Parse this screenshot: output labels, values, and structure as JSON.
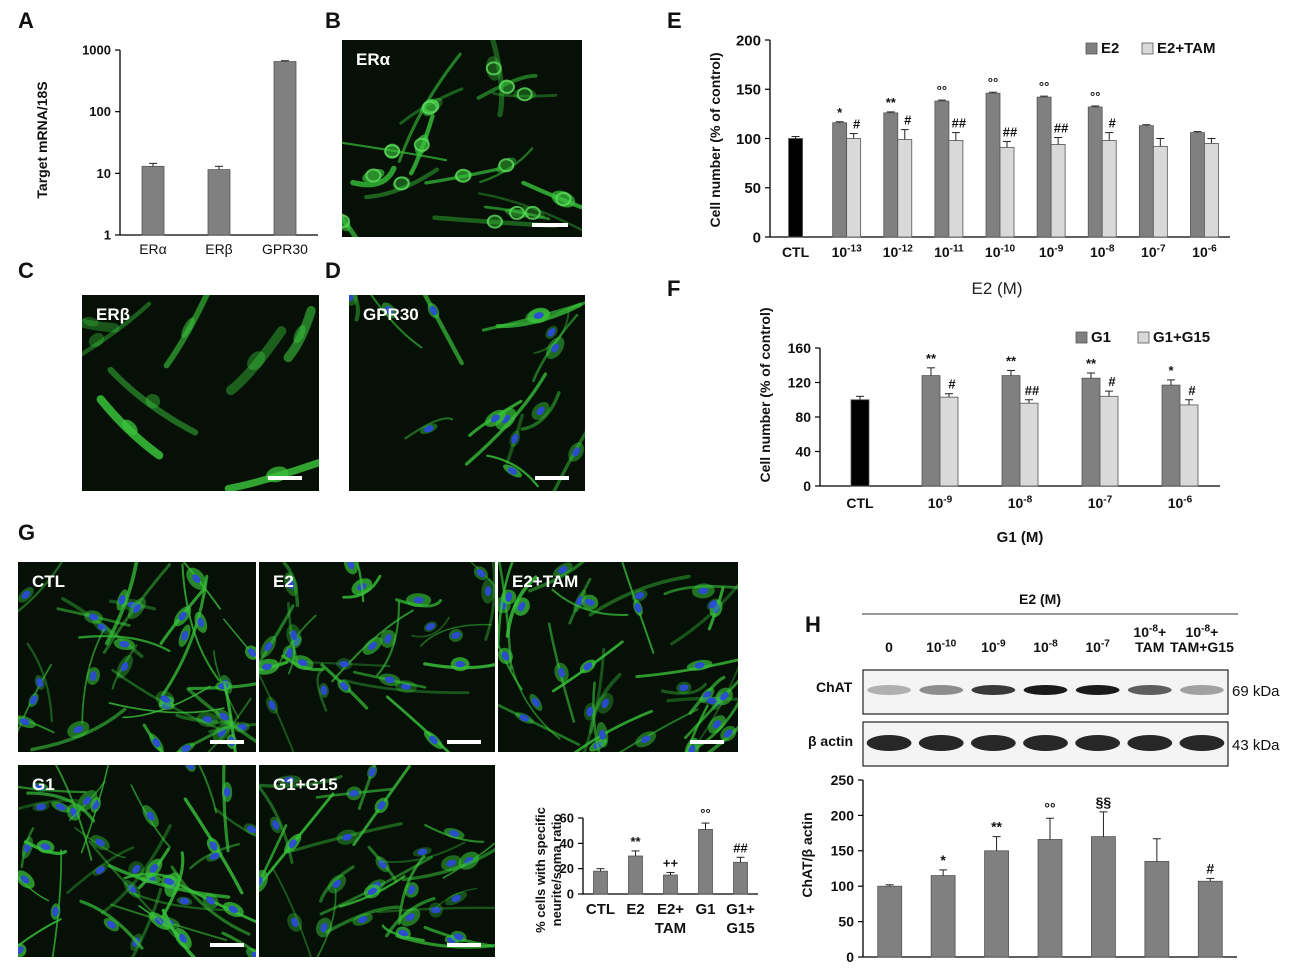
{
  "panels": {
    "A": {
      "letter": "A",
      "ylabel": "Target mRNA/18S"
    },
    "B": {
      "letter": "B",
      "label": "ERα"
    },
    "C": {
      "letter": "C",
      "label": "ERβ"
    },
    "D": {
      "letter": "D",
      "label": "GPR30"
    },
    "E": {
      "letter": "E",
      "xlabel": "E2 (M)",
      "ylabel": "Cell number (% of control)"
    },
    "F": {
      "letter": "F",
      "xlabel": "G1 (M)",
      "ylabel": "Cell number (% of control)"
    },
    "G": {
      "letter": "G",
      "images": [
        "CTL",
        "E2",
        "E2+TAM",
        "G1",
        "G1+G15"
      ],
      "ylabel_line1": "% cells with specific",
      "ylabel_line2": "neurite/soma ratio"
    },
    "H": {
      "letter": "H",
      "header": "E2 (M)",
      "lanes": [
        [
          "0"
        ],
        [
          "10-10"
        ],
        [
          "10-9"
        ],
        [
          "10-8"
        ],
        [
          "10-7"
        ],
        [
          "10-8+",
          "TAM"
        ],
        [
          "10-8+",
          "TAM+G15"
        ]
      ],
      "blot1_name": "ChAT",
      "blot1_kda": "69 kDa",
      "blot2_name": "β actin",
      "blot2_kda": "43 kDa",
      "ylabel": "ChAT/β actin"
    }
  },
  "colors": {
    "dark_bar": "#808080",
    "light_bar": "#d9d9d9",
    "black_bar": "#000000",
    "cell_green": "#38c23a",
    "nuclei_blue": "#2b4bd6"
  },
  "chart_data": [
    {
      "panel": "A",
      "type": "bar",
      "yscale": "log",
      "ylim": [
        1,
        1000
      ],
      "yticks": [
        1,
        10,
        100,
        1000
      ],
      "categories": [
        "ERα",
        "ERβ",
        "GPR30"
      ],
      "values": [
        13,
        11.5,
        650
      ],
      "errors": [
        1.5,
        1.5,
        20
      ],
      "ylabel": "Target mRNA/18S"
    },
    {
      "panel": "E",
      "type": "bar",
      "ylim": [
        0,
        200
      ],
      "yticks": [
        0,
        50,
        100,
        150,
        200
      ],
      "categories": [
        "CTL",
        "10-13",
        "10-12",
        "10-11",
        "10-10",
        "10-9",
        "10-8",
        "10-7",
        "10-6"
      ],
      "control": {
        "value": 100,
        "error": 2
      },
      "series": [
        {
          "name": "E2",
          "values": [
            null,
            116,
            126,
            138,
            146,
            142,
            132,
            113,
            106
          ],
          "errors": [
            null,
            1,
            1,
            1,
            1,
            1,
            1,
            1,
            1
          ],
          "marks": [
            null,
            "*",
            "**",
            "°°",
            "°°",
            "°°",
            "°°",
            "",
            ""
          ]
        },
        {
          "name": "E2+TAM",
          "values": [
            null,
            100,
            99,
            98,
            91,
            94,
            98,
            92,
            95
          ],
          "errors": [
            null,
            5,
            10,
            8,
            6,
            7,
            8,
            8,
            5
          ],
          "marks": [
            null,
            "#",
            "#",
            "##",
            "##",
            "##",
            "#",
            "",
            ""
          ]
        }
      ],
      "xlabel": "E2 (M)",
      "ylabel": "Cell number (% of control)",
      "legend": "top-right"
    },
    {
      "panel": "F",
      "type": "bar",
      "ylim": [
        0,
        160
      ],
      "yticks": [
        0,
        40,
        80,
        120,
        160
      ],
      "categories": [
        "CTL",
        "10-9",
        "10-8",
        "10-7",
        "10-6"
      ],
      "control": {
        "value": 100,
        "error": 4
      },
      "series": [
        {
          "name": "G1",
          "values": [
            null,
            128,
            128,
            125,
            117
          ],
          "errors": [
            null,
            9,
            6,
            6,
            6
          ],
          "marks": [
            null,
            "**",
            "**",
            "**",
            "*"
          ]
        },
        {
          "name": "G1+G15",
          "values": [
            null,
            103,
            96,
            104,
            94
          ],
          "errors": [
            null,
            4,
            4,
            6,
            6
          ],
          "marks": [
            null,
            "#",
            "##",
            "#",
            "#"
          ]
        }
      ],
      "xlabel": "G1 (M)",
      "ylabel": "Cell number (% of control)",
      "legend": "top-right"
    },
    {
      "panel": "G",
      "type": "bar",
      "ylim": [
        0,
        60
      ],
      "yticks": [
        0,
        20,
        40,
        60
      ],
      "categories": [
        [
          "CTL"
        ],
        [
          "E2"
        ],
        [
          "E2+",
          "TAM"
        ],
        [
          "G1"
        ],
        [
          "G1+",
          "G15"
        ]
      ],
      "values": [
        18,
        30,
        15,
        51,
        25
      ],
      "errors": [
        2,
        4,
        2,
        5,
        4
      ],
      "marks": [
        "",
        "**",
        "++",
        "°°",
        "##"
      ],
      "ylabel": "% cells with specific neurite/soma ratio"
    },
    {
      "panel": "H",
      "type": "bar",
      "ylim": [
        0,
        250
      ],
      "yticks": [
        0,
        50,
        100,
        150,
        200,
        250
      ],
      "categories": [
        "0",
        "10-10",
        "10-9",
        "10-8",
        "10-7",
        "10-8+TAM",
        "10-8+TAM+G15"
      ],
      "values": [
        100,
        115,
        150,
        166,
        170,
        135,
        107
      ],
      "errors": [
        2,
        8,
        20,
        30,
        35,
        32,
        4
      ],
      "marks": [
        "",
        "*",
        "**",
        "°°",
        "§§",
        "",
        "#"
      ],
      "ylabel": "ChAT/β actin"
    }
  ]
}
